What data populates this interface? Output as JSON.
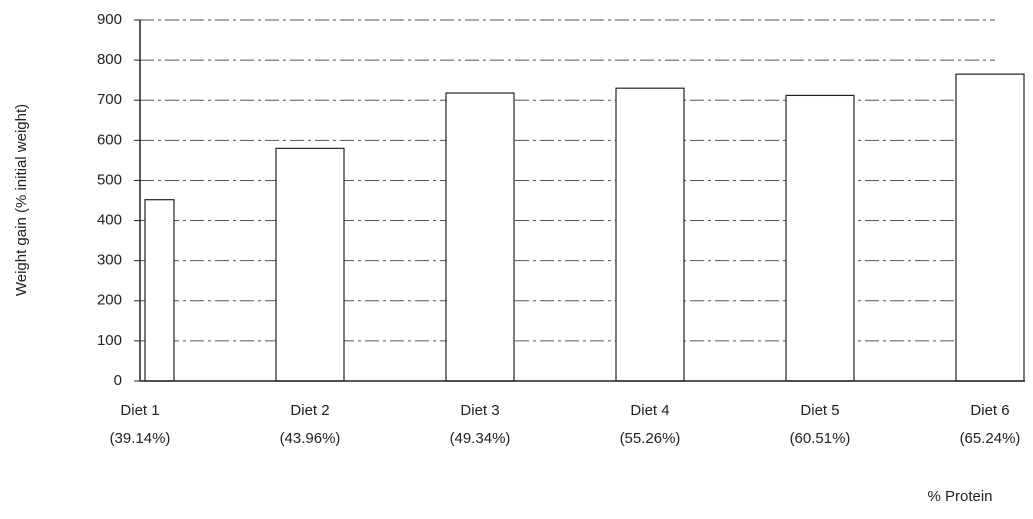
{
  "chart_data": {
    "type": "bar",
    "y_label": "Weight gain (% initial weight)",
    "x_label": "% Protein",
    "categories": [
      [
        "Diet 1",
        "(39.14%)"
      ],
      [
        "Diet 2",
        "(43.96%)"
      ],
      [
        "Diet 3",
        "(49.34%)"
      ],
      [
        "Diet 4",
        "(55.26%)"
      ],
      [
        "Diet 5",
        "(60.51%)"
      ],
      [
        "Diet 6",
        "(65.24%)"
      ]
    ],
    "values": [
      452,
      580,
      718,
      730,
      712,
      765
    ],
    "color": "#ffffff",
    "ylim": [
      0,
      900
    ],
    "yticks": [
      0,
      100,
      200,
      300,
      400,
      500,
      600,
      700,
      800,
      900
    ],
    "grid": true
  }
}
